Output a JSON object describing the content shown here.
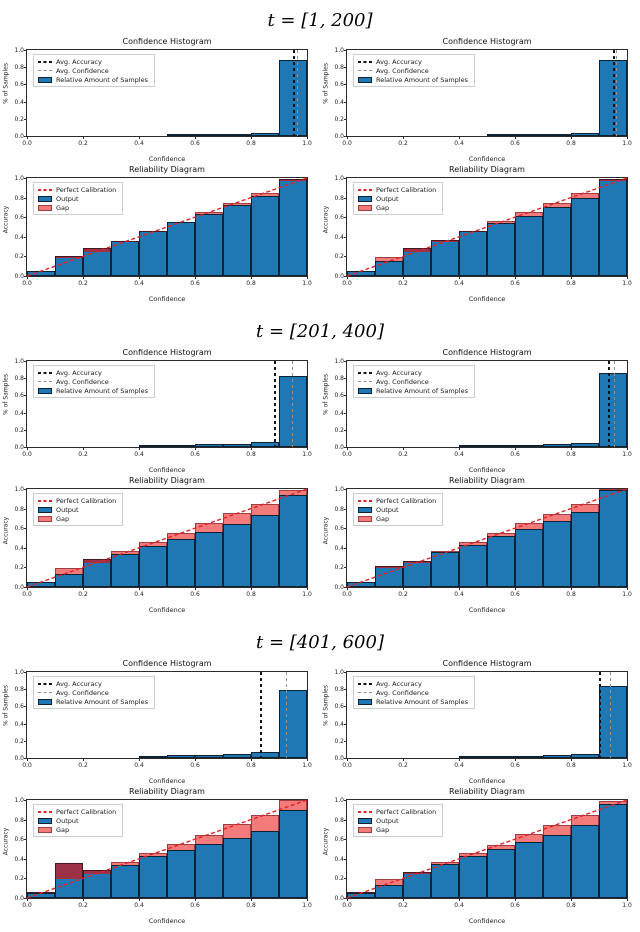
{
  "figure_type": "calibration-figure",
  "colors": {
    "bar_blue": "#1f77b4",
    "bar_edge": "#0d2233",
    "gap_red_light": "#f47b7b",
    "gap_red_overlap": "#9c3246",
    "perfect_calibration_line": "#e32226",
    "avg_accuracy_line": "#141414",
    "avg_confidence_line": "#979289",
    "background": "#ffffff"
  },
  "labels": {
    "hist_title": "Confidence Histogram",
    "rel_title": "Reliability Diagram",
    "xlabel": "Confidence",
    "hist_ylabel": "% of Samples",
    "rel_ylabel": "Accuracy",
    "hist_legend": [
      "Avg. Accuracy",
      "Avg. Confidence",
      "Relative Amount of Samples"
    ],
    "rel_legend": [
      "Perfect Calibration",
      "Output",
      "Gap"
    ],
    "x_ticks": [
      "0.0",
      "0.2",
      "0.4",
      "0.6",
      "0.8",
      "1.0"
    ],
    "y_ticks": [
      "0.0",
      "0.2",
      "0.4",
      "0.6",
      "0.8",
      "1.0"
    ]
  },
  "chart_data": [
    {
      "section_title": "t = [1, 200]",
      "panels": [
        {
          "confidence_histogram": {
            "type": "bar",
            "title": "Confidence Histogram",
            "xlabel": "Confidence",
            "ylabel": "% of Samples",
            "xlim": [
              0,
              1
            ],
            "ylim": [
              0,
              1
            ],
            "bin_width": 0.1,
            "values": [
              0,
              0,
              0,
              0,
              0,
              0.012,
              0.02,
              0.022,
              0.032,
              0.885
            ],
            "avg_accuracy": 0.955,
            "avg_confidence": 0.965,
            "legend": [
              "Avg. Accuracy",
              "Avg. Confidence",
              "Relative Amount of Samples"
            ]
          },
          "reliability_diagram": {
            "type": "bar",
            "title": "Reliability Diagram",
            "xlabel": "Confidence",
            "ylabel": "Accuracy",
            "xlim": [
              0,
              1
            ],
            "ylim": [
              0,
              1
            ],
            "bin_width": 0.1,
            "output": [
              0.05,
              0.2,
              0.285,
              0.355,
              0.46,
              0.55,
              0.63,
              0.72,
              0.815,
              0.99
            ],
            "gap_boundary": [
              0.05,
              0.18,
              0.245,
              0.345,
              0.45,
              0.55,
              0.65,
              0.75,
              0.85,
              0.97
            ],
            "legend": [
              "Perfect Calibration",
              "Output",
              "Gap"
            ]
          }
        },
        {
          "confidence_histogram": {
            "type": "bar",
            "title": "Confidence Histogram",
            "xlabel": "Confidence",
            "ylabel": "% of Samples",
            "xlim": [
              0,
              1
            ],
            "ylim": [
              0,
              1
            ],
            "bin_width": 0.1,
            "values": [
              0,
              0,
              0,
              0,
              0,
              0.01,
              0.015,
              0.02,
              0.03,
              0.885
            ],
            "avg_accuracy": 0.952,
            "avg_confidence": 0.962,
            "legend": [
              "Avg. Accuracy",
              "Avg. Confidence",
              "Relative Amount of Samples"
            ]
          },
          "reliability_diagram": {
            "type": "bar",
            "title": "Reliability Diagram",
            "xlabel": "Confidence",
            "ylabel": "Accuracy",
            "xlim": [
              0,
              1
            ],
            "ylim": [
              0,
              1
            ],
            "bin_width": 0.1,
            "output": [
              0.05,
              0.15,
              0.29,
              0.37,
              0.46,
              0.54,
              0.615,
              0.7,
              0.795,
              0.99
            ],
            "gap_boundary": [
              0.05,
              0.19,
              0.25,
              0.35,
              0.45,
              0.56,
              0.65,
              0.75,
              0.85,
              0.97
            ],
            "legend": [
              "Perfect Calibration",
              "Output",
              "Gap"
            ]
          }
        }
      ]
    },
    {
      "section_title": "t = [201, 400]",
      "panels": [
        {
          "confidence_histogram": {
            "type": "bar",
            "title": "Confidence Histogram",
            "xlabel": "Confidence",
            "ylabel": "% of Samples",
            "xlim": [
              0,
              1
            ],
            "ylim": [
              0,
              1
            ],
            "bin_width": 0.1,
            "values": [
              0,
              0,
              0,
              0,
              0.012,
              0.022,
              0.03,
              0.04,
              0.055,
              0.825
            ],
            "avg_accuracy": 0.885,
            "avg_confidence": 0.945,
            "legend": [
              "Avg. Accuracy",
              "Avg. Confidence",
              "Relative Amount of Samples"
            ]
          },
          "reliability_diagram": {
            "type": "bar",
            "title": "Reliability Diagram",
            "xlabel": "Confidence",
            "ylabel": "Accuracy",
            "xlim": [
              0,
              1
            ],
            "ylim": [
              0,
              1
            ],
            "bin_width": 0.1,
            "output": [
              0.05,
              0.13,
              0.285,
              0.34,
              0.415,
              0.49,
              0.565,
              0.645,
              0.735,
              0.935
            ],
            "gap_boundary": [
              0.05,
              0.19,
              0.25,
              0.37,
              0.46,
              0.55,
              0.65,
              0.755,
              0.85,
              0.99
            ],
            "legend": [
              "Perfect Calibration",
              "Output",
              "Gap"
            ]
          }
        },
        {
          "confidence_histogram": {
            "type": "bar",
            "title": "Confidence Histogram",
            "xlabel": "Confidence",
            "ylabel": "% of Samples",
            "xlim": [
              0,
              1
            ],
            "ylim": [
              0,
              1
            ],
            "bin_width": 0.1,
            "values": [
              0,
              0,
              0,
              0,
              0.01,
              0.018,
              0.028,
              0.035,
              0.048,
              0.865
            ],
            "avg_accuracy": 0.935,
            "avg_confidence": 0.955,
            "legend": [
              "Avg. Accuracy",
              "Avg. Confidence",
              "Relative Amount of Samples"
            ]
          },
          "reliability_diagram": {
            "type": "bar",
            "title": "Reliability Diagram",
            "xlabel": "Confidence",
            "ylabel": "Accuracy",
            "xlim": [
              0,
              1
            ],
            "ylim": [
              0,
              1
            ],
            "bin_width": 0.1,
            "output": [
              0.05,
              0.215,
              0.27,
              0.355,
              0.43,
              0.52,
              0.59,
              0.67,
              0.765,
              0.985
            ],
            "gap_boundary": [
              0.05,
              0.195,
              0.25,
              0.37,
              0.46,
              0.55,
              0.65,
              0.75,
              0.85,
              1.0
            ],
            "legend": [
              "Perfect Calibration",
              "Output",
              "Gap"
            ]
          }
        }
      ]
    },
    {
      "section_title": "t = [401, 600]",
      "panels": [
        {
          "confidence_histogram": {
            "type": "bar",
            "title": "Confidence Histogram",
            "xlabel": "Confidence",
            "ylabel": "% of Samples",
            "xlim": [
              0,
              1
            ],
            "ylim": [
              0,
              1
            ],
            "bin_width": 0.1,
            "values": [
              0,
              0,
              0,
              0,
              0.012,
              0.03,
              0.035,
              0.045,
              0.065,
              0.79
            ],
            "avg_accuracy": 0.835,
            "avg_confidence": 0.925,
            "legend": [
              "Avg. Accuracy",
              "Avg. Confidence",
              "Relative Amount of Samples"
            ]
          },
          "reliability_diagram": {
            "type": "bar",
            "title": "Reliability Diagram",
            "xlabel": "Confidence",
            "ylabel": "Accuracy",
            "xlim": [
              0,
              1
            ],
            "ylim": [
              0,
              1
            ],
            "bin_width": 0.1,
            "output": [
              0.055,
              0.355,
              0.285,
              0.335,
              0.43,
              0.49,
              0.55,
              0.615,
              0.685,
              0.895
            ],
            "gap_boundary": [
              0.05,
              0.19,
              0.25,
              0.37,
              0.46,
              0.55,
              0.645,
              0.755,
              0.85,
              1.0
            ],
            "legend": [
              "Perfect Calibration",
              "Output",
              "Gap"
            ]
          }
        },
        {
          "confidence_histogram": {
            "type": "bar",
            "title": "Confidence Histogram",
            "xlabel": "Confidence",
            "ylabel": "% of Samples",
            "xlim": [
              0,
              1
            ],
            "ylim": [
              0,
              1
            ],
            "bin_width": 0.1,
            "values": [
              0,
              0,
              0,
              0,
              0.01,
              0.02,
              0.025,
              0.032,
              0.05,
              0.84
            ],
            "avg_accuracy": 0.905,
            "avg_confidence": 0.94,
            "legend": [
              "Avg. Accuracy",
              "Avg. Confidence",
              "Relative Amount of Samples"
            ]
          },
          "reliability_diagram": {
            "type": "bar",
            "title": "Reliability Diagram",
            "xlabel": "Confidence",
            "ylabel": "Accuracy",
            "xlim": [
              0,
              1
            ],
            "ylim": [
              0,
              1
            ],
            "bin_width": 0.1,
            "output": [
              0.055,
              0.13,
              0.27,
              0.35,
              0.43,
              0.5,
              0.57,
              0.64,
              0.74,
              0.955
            ],
            "gap_boundary": [
              0.05,
              0.19,
              0.25,
              0.37,
              0.46,
              0.545,
              0.65,
              0.75,
              0.85,
              0.995
            ],
            "legend": [
              "Perfect Calibration",
              "Output",
              "Gap"
            ]
          }
        }
      ]
    }
  ]
}
